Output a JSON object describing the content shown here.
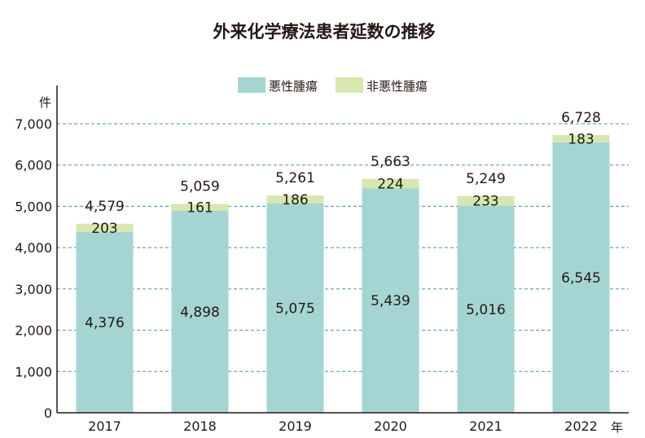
{
  "chart_data": {
    "type": "bar",
    "stacked": true,
    "title": "外来化学療法患者延数の推移",
    "xlabel": "年",
    "ylabel": "件",
    "categories": [
      "2017",
      "2018",
      "2019",
      "2020",
      "2021",
      "2022"
    ],
    "series": [
      {
        "name": "悪性腫瘍",
        "values": [
          4376,
          4898,
          5075,
          5439,
          5016,
          6545
        ],
        "labels": [
          "4,376",
          "4,898",
          "5,075",
          "5,439",
          "5,016",
          "6,545"
        ],
        "color": "#a4d5d3"
      },
      {
        "name": "非悪性腫瘍",
        "values": [
          203,
          161,
          186,
          224,
          233,
          183
        ],
        "labels": [
          "203",
          "161",
          "186",
          "224",
          "233",
          "183"
        ],
        "color": "#d7e7b0"
      }
    ],
    "totals": [
      4579,
      5059,
      5261,
      5663,
      5249,
      6728
    ],
    "total_labels": [
      "4,579",
      "5,059",
      "5,261",
      "5,663",
      "5,249",
      "6,728"
    ],
    "ylim": [
      0,
      7000
    ],
    "yticks": [
      0,
      1000,
      2000,
      3000,
      4000,
      5000,
      6000,
      7000
    ],
    "ytick_labels": [
      "0",
      "1,000",
      "2,000",
      "3,000",
      "4,000",
      "5,000",
      "6,000",
      "7,000"
    ],
    "grid": true,
    "grid_color": "#4b8fb0",
    "legend_position": "top"
  }
}
